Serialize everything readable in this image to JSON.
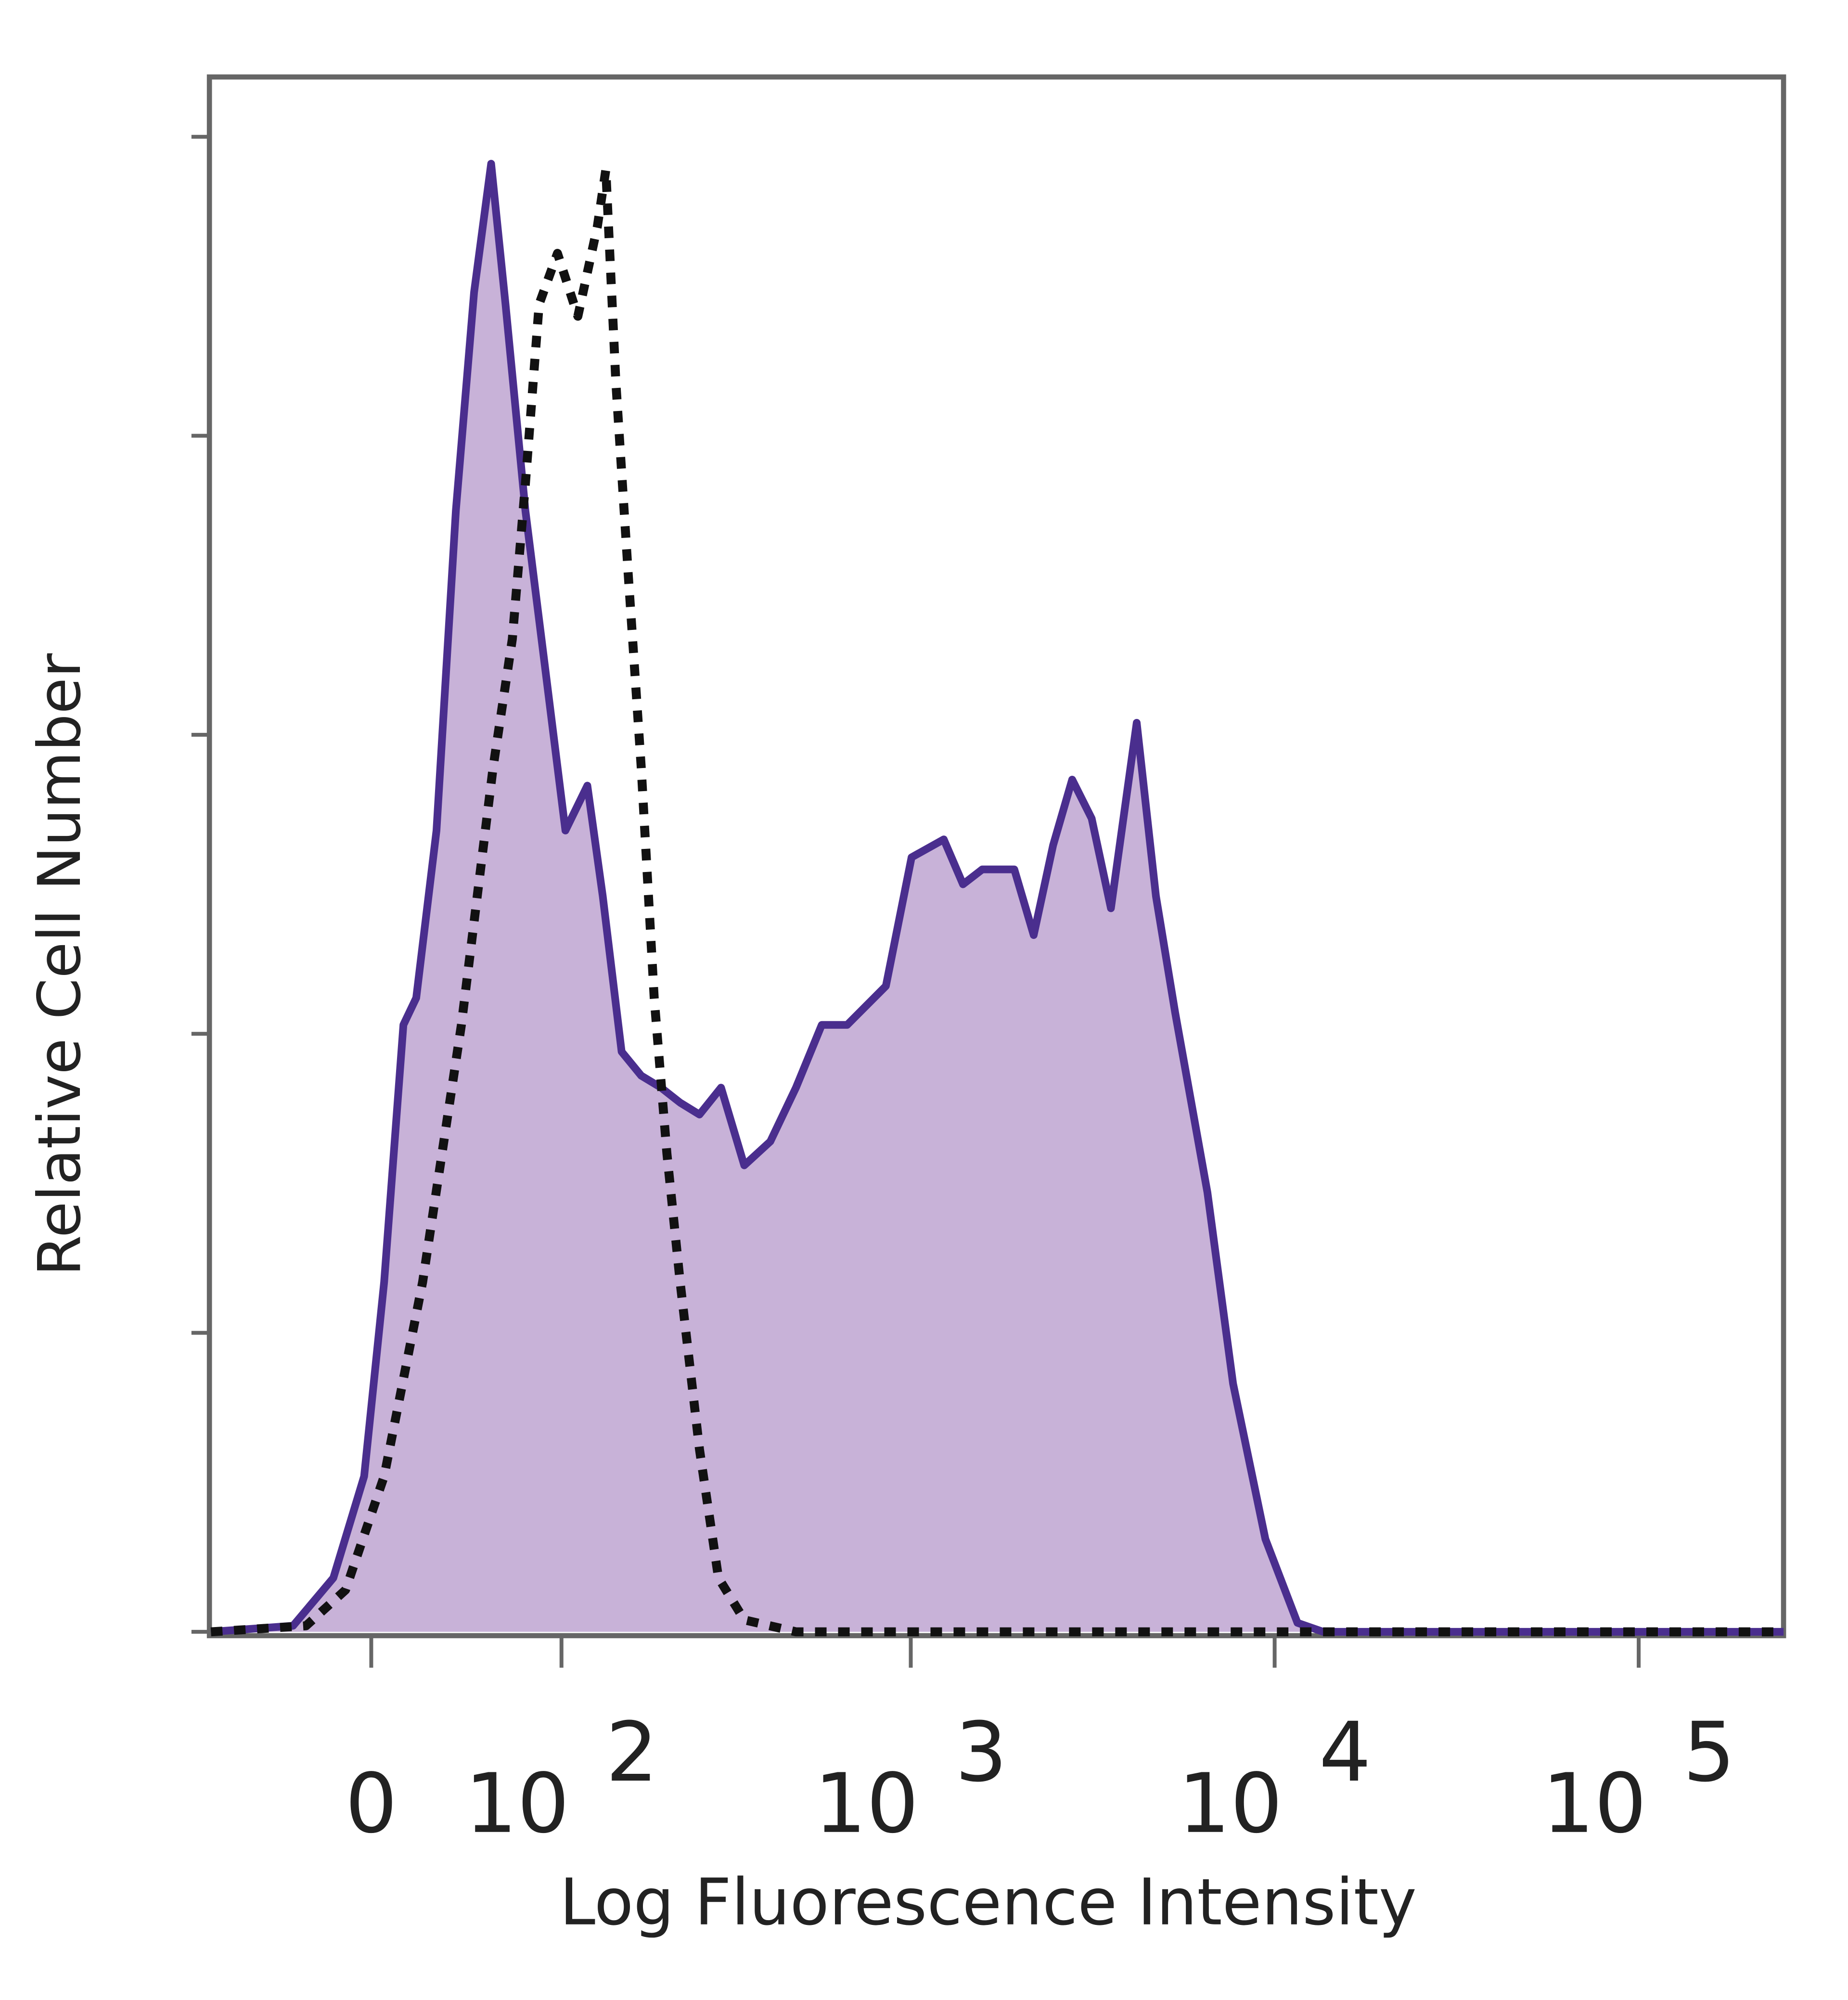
{
  "chart_data": {
    "type": "area",
    "x_label": "Log Fluorescence Intensity",
    "y_label": "Relative Cell Number",
    "xscale": "biexponential",
    "xlim": [
      -80,
      250000
    ],
    "xticks": [
      0,
      {
        "value": 100,
        "label": "10 2"
      },
      {
        "value": 1000,
        "label": "10 3"
      },
      {
        "value": 10000,
        "label": "10 4"
      },
      {
        "value": 100000,
        "label": "10 5"
      }
    ],
    "ylim": [
      0,
      5.2
    ],
    "yticks": [
      0,
      1,
      2,
      3,
      4,
      5
    ],
    "ytick_labels": false,
    "series": [
      {
        "color": "#4a2e8e",
        "fill": "#c8b2d8",
        "style": "solid",
        "x": [
          -79,
          -34,
          -16,
          -3,
          5.4,
          13.5,
          19,
          28,
          37,
          46,
          55,
          63,
          75,
          88,
          103,
          121,
          135,
          154,
          176,
          201,
          228,
          259,
          298,
          346,
          409,
          482,
          568,
          668,
          854,
          1005,
          1232,
          1392,
          1573,
          1927,
          2178,
          2462,
          2779,
          3142,
          3551,
          4178,
          4719,
          5333,
          6534,
          7689,
          9431,
          11550,
          13600,
          250000
        ],
        "values": [
          0,
          0.02,
          0.18,
          0.52,
          1.17,
          2.03,
          2.12,
          2.68,
          3.75,
          4.48,
          4.91,
          4.44,
          3.75,
          3.23,
          2.68,
          2.83,
          2.46,
          1.94,
          1.86,
          1.82,
          1.77,
          1.73,
          1.82,
          1.56,
          1.64,
          1.82,
          2.03,
          2.03,
          2.16,
          2.59,
          2.65,
          2.5,
          2.55,
          2.55,
          2.33,
          2.63,
          2.85,
          2.72,
          2.42,
          3.04,
          2.46,
          2.07,
          1.47,
          0.83,
          0.31,
          0.03,
          0,
          0
        ]
      },
      {
        "color": "#111111",
        "style": "dotted",
        "x": [
          -79,
          -28,
          -10.8,
          5.4,
          21.8,
          39.7,
          56,
          67,
          75,
          84,
          97,
          113,
          130,
          138,
          148,
          161,
          176,
          192,
          209,
          228,
          259,
          293,
          346,
          482,
          250000
        ],
        "values": [
          0,
          0.02,
          0.14,
          0.52,
          1.17,
          2.03,
          2.89,
          3.32,
          3.84,
          4.44,
          4.61,
          4.4,
          4.7,
          4.89,
          4.18,
          3.54,
          2.89,
          2.12,
          1.6,
          1.17,
          0.61,
          0.18,
          0.04,
          0,
          0
        ]
      }
    ]
  }
}
